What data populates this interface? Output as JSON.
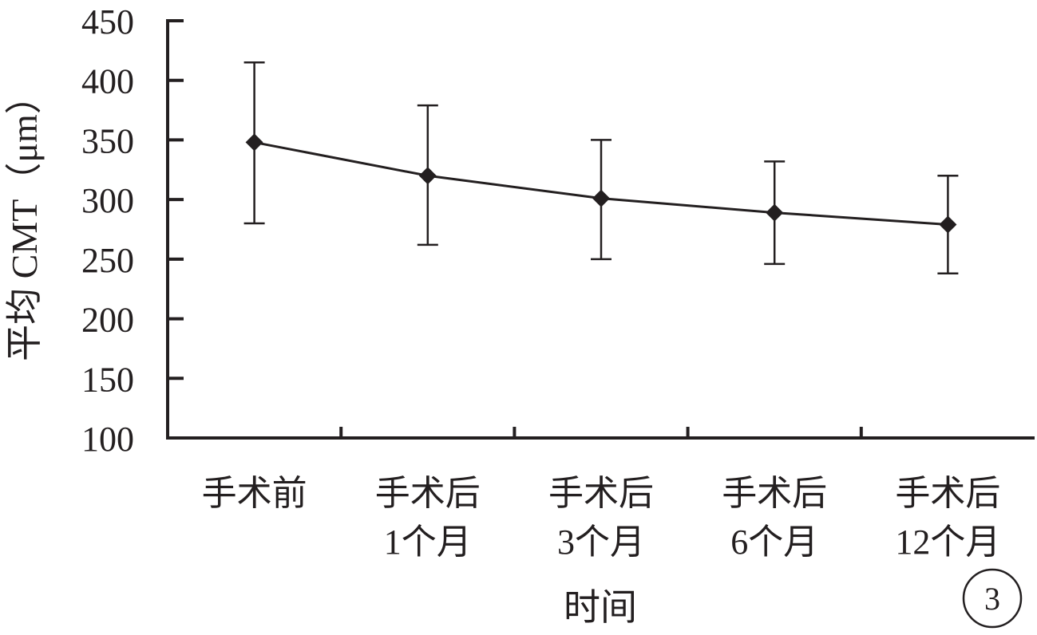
{
  "chart_data": {
    "type": "line",
    "title": "",
    "xlabel": "时间",
    "ylabel": "平均 CMT（μm）",
    "ylim": [
      100,
      450
    ],
    "yticks": [
      100,
      150,
      200,
      250,
      300,
      350,
      400,
      450
    ],
    "categories": [
      [
        "手术前"
      ],
      [
        "手术后",
        "1个月"
      ],
      [
        "手术后",
        "3个月"
      ],
      [
        "手术后",
        "6个月"
      ],
      [
        "手术后",
        "12个月"
      ]
    ],
    "series": [
      {
        "values": [
          348,
          320,
          301,
          289,
          279
        ],
        "error_low": [
          280,
          262,
          250,
          246,
          238
        ],
        "error_high": [
          415,
          379,
          350,
          332,
          320
        ]
      }
    ],
    "grid": false,
    "legend": "none",
    "marker": "diamond",
    "color": "#231f20",
    "panel_label": "3"
  }
}
